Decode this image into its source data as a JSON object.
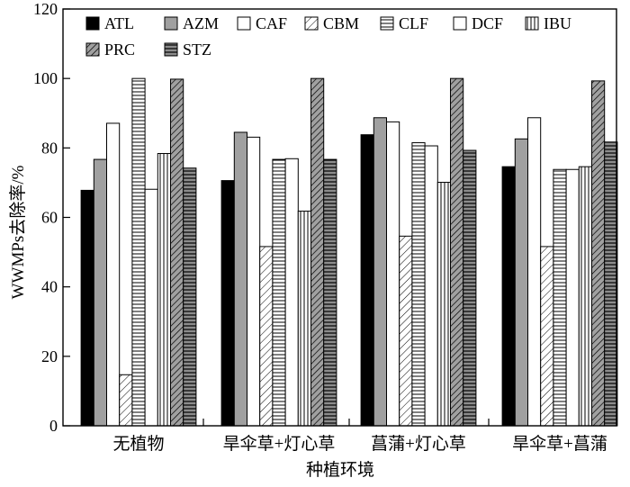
{
  "chart_data": {
    "type": "bar",
    "title": "",
    "xlabel": "种植环境",
    "ylabel": "WWMPs去除率/%",
    "ylim": [
      0,
      120
    ],
    "yticks": [
      0,
      20,
      40,
      60,
      80,
      100,
      120
    ],
    "grid": false,
    "legend": {
      "placement": "top",
      "columns": 6
    },
    "categories": [
      "无植物",
      "旱伞草+灯心草",
      "菖蒲+灯心草",
      "旱伞草+菖蒲"
    ],
    "series": [
      {
        "name": "ATL",
        "pattern": "solid",
        "color": "#000000",
        "values": [
          67.8,
          70.6,
          83.8,
          74.6
        ]
      },
      {
        "name": "AZM",
        "pattern": "solid",
        "color": "#a0a0a0",
        "values": [
          76.7,
          84.5,
          88.7,
          82.6
        ]
      },
      {
        "name": "CAF",
        "pattern": "none",
        "color": "#ffffff",
        "values": [
          87.1,
          83.1,
          87.5,
          88.7
        ]
      },
      {
        "name": "CBM",
        "pattern": "diag",
        "color": "#000000",
        "values": [
          14.7,
          51.6,
          54.6,
          51.6
        ]
      },
      {
        "name": "CLF",
        "pattern": "hlines",
        "color": "#000000",
        "values": [
          100.0,
          76.7,
          81.5,
          73.8
        ]
      },
      {
        "name": "DCF",
        "pattern": "none",
        "color": "#ffffff",
        "values": [
          68.1,
          76.9,
          80.6,
          73.8
        ]
      },
      {
        "name": "IBU",
        "pattern": "vlines",
        "color": "#000000",
        "values": [
          78.4,
          61.8,
          70.1,
          74.6
        ]
      },
      {
        "name": "PRC",
        "pattern": "diag-gray",
        "color": "#a0a0a0",
        "values": [
          99.8,
          100.0,
          100.0,
          99.3
        ]
      },
      {
        "name": "STZ",
        "pattern": "hlines-gray",
        "color": "#808080",
        "values": [
          74.2,
          76.7,
          79.3,
          81.7
        ]
      }
    ]
  }
}
